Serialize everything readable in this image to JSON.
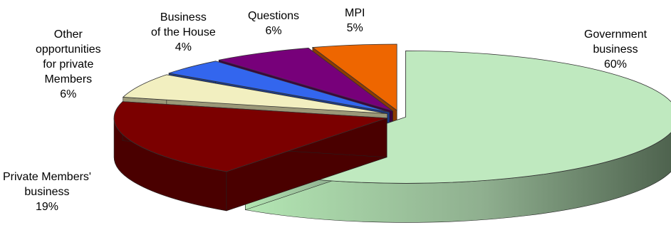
{
  "chart_data": {
    "type": "pie",
    "style": "3d-exploded",
    "legend": "none",
    "slices": [
      {
        "name": "Government business",
        "label_lines": [
          "Government",
          "business"
        ],
        "pct_label": "60%",
        "value": 60,
        "color": "#bfe9bf"
      },
      {
        "name": "Private Members' business",
        "label_lines": [
          "Private Members'",
          "business"
        ],
        "pct_label": "19%",
        "value": 19,
        "color": "#7b0000"
      },
      {
        "name": "Other opportunities for private Members",
        "label_lines": [
          "Other",
          "opportunities",
          "for private",
          "Members"
        ],
        "pct_label": "6%",
        "value": 6,
        "color": "#f2efc0"
      },
      {
        "name": "Business of the House",
        "label_lines": [
          "Business",
          "of the House"
        ],
        "pct_label": "4%",
        "value": 4,
        "color": "#3366ee"
      },
      {
        "name": "Questions",
        "label_lines": [
          "Questions"
        ],
        "pct_label": "6%",
        "value": 6,
        "color": "#77007a"
      },
      {
        "name": "MPI",
        "label_lines": [
          "MPI"
        ],
        "pct_label": "5%",
        "value": 5,
        "color": "#ee6600"
      }
    ]
  }
}
